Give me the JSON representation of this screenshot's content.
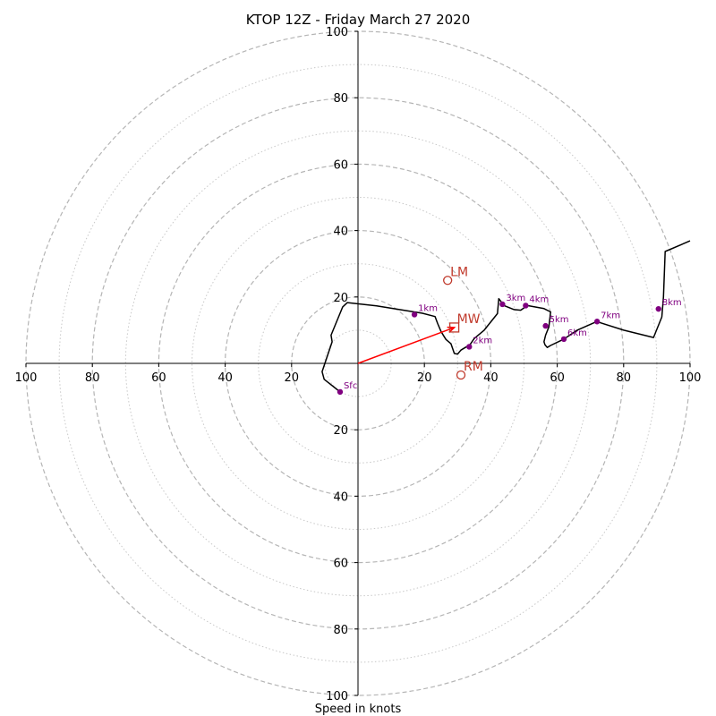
{
  "chart_data": {
    "type": "line",
    "title": "KTOP 12Z - Friday March 27 2020",
    "xlabel": "Speed in knots",
    "axis_range": [
      -100,
      100
    ],
    "ring_major": [
      20,
      40,
      60,
      80,
      100
    ],
    "ring_minor": [
      10,
      30,
      50,
      70,
      90
    ],
    "x_ticks": [
      {
        "value": -100,
        "label": "100"
      },
      {
        "value": -80,
        "label": "80"
      },
      {
        "value": -60,
        "label": "60"
      },
      {
        "value": -40,
        "label": "40"
      },
      {
        "value": -20,
        "label": "20"
      },
      {
        "value": 20,
        "label": "20"
      },
      {
        "value": 40,
        "label": "40"
      },
      {
        "value": 60,
        "label": "60"
      },
      {
        "value": 80,
        "label": "80"
      },
      {
        "value": 100,
        "label": "100"
      }
    ],
    "y_ticks": [
      {
        "value": 100,
        "label": "100"
      },
      {
        "value": 80,
        "label": "80"
      },
      {
        "value": 60,
        "label": "60"
      },
      {
        "value": 40,
        "label": "40"
      },
      {
        "value": 20,
        "label": "20"
      },
      {
        "value": -20,
        "label": "20"
      },
      {
        "value": -40,
        "label": "40"
      },
      {
        "value": -60,
        "label": "60"
      },
      {
        "value": -80,
        "label": "80"
      },
      {
        "value": -100,
        "label": "100"
      }
    ],
    "hodograph": {
      "u": [
        -5.4,
        -10.2,
        -10.8,
        -7.8,
        -8.1,
        -4.6,
        -3.2,
        5.6,
        19.4,
        23.2,
        24.0,
        25.0,
        25.8,
        26.5,
        28.0,
        29.0,
        30.0,
        31.0,
        32.5,
        33.5,
        35.0,
        38.0,
        42.0,
        42.4,
        44.0,
        47.0,
        49.0,
        51.0,
        56.0,
        58.0,
        57.5,
        56.5,
        56.0,
        56.3,
        57.0,
        58.0,
        62.0,
        66.0,
        71.9,
        80.0,
        89.0,
        91.5,
        92.0,
        92.5,
        100.0
      ],
      "v": [
        -8.6,
        -4.8,
        -2.5,
        6.5,
        8.5,
        17.0,
        18.3,
        17.3,
        15.1,
        14.1,
        12.0,
        9.6,
        8.3,
        7.2,
        5.9,
        3.0,
        2.8,
        4.0,
        4.9,
        5.3,
        7.5,
        10.0,
        15.0,
        19.5,
        17.4,
        16.2,
        16.0,
        17.4,
        16.5,
        15.5,
        11.0,
        8.5,
        6.5,
        5.6,
        4.8,
        5.4,
        7.3,
        10.0,
        12.6,
        10.0,
        7.8,
        14.0,
        20.0,
        33.7,
        36.9
      ]
    },
    "height_markers": [
      {
        "label": "Sfc",
        "u": -5.4,
        "v": -8.6
      },
      {
        "label": "1km",
        "u": 17.0,
        "v": 14.7
      },
      {
        "label": "2km",
        "u": 33.5,
        "v": 5.0
      },
      {
        "label": "3km",
        "u": 43.5,
        "v": 17.8
      },
      {
        "label": "4km",
        "u": 50.5,
        "v": 17.4
      },
      {
        "label": "5km",
        "u": 56.5,
        "v": 11.3
      },
      {
        "label": "6km",
        "u": 62.0,
        "v": 7.3
      },
      {
        "label": "7km",
        "u": 72.0,
        "v": 12.6
      },
      {
        "label": "8km",
        "u": 90.5,
        "v": 16.4
      }
    ],
    "storm_motions": [
      {
        "label": "LM",
        "u": 27.0,
        "v": 25.0,
        "symbol": "circle"
      },
      {
        "label": "MW",
        "u": 29.0,
        "v": 10.8,
        "symbol": "square"
      },
      {
        "label": "RM",
        "u": 31.0,
        "v": -3.5,
        "symbol": "circle"
      }
    ],
    "shear_vector": {
      "from": [
        0,
        0
      ],
      "to": [
        29.0,
        10.8
      ]
    },
    "colors": {
      "hodograph": "#000000",
      "markers": "#800080",
      "storm_motion": "#c0392b",
      "shear_vector": "#ff0000",
      "grid_major": "#b5b5b5",
      "grid_minor": "#c8c8c8"
    }
  }
}
